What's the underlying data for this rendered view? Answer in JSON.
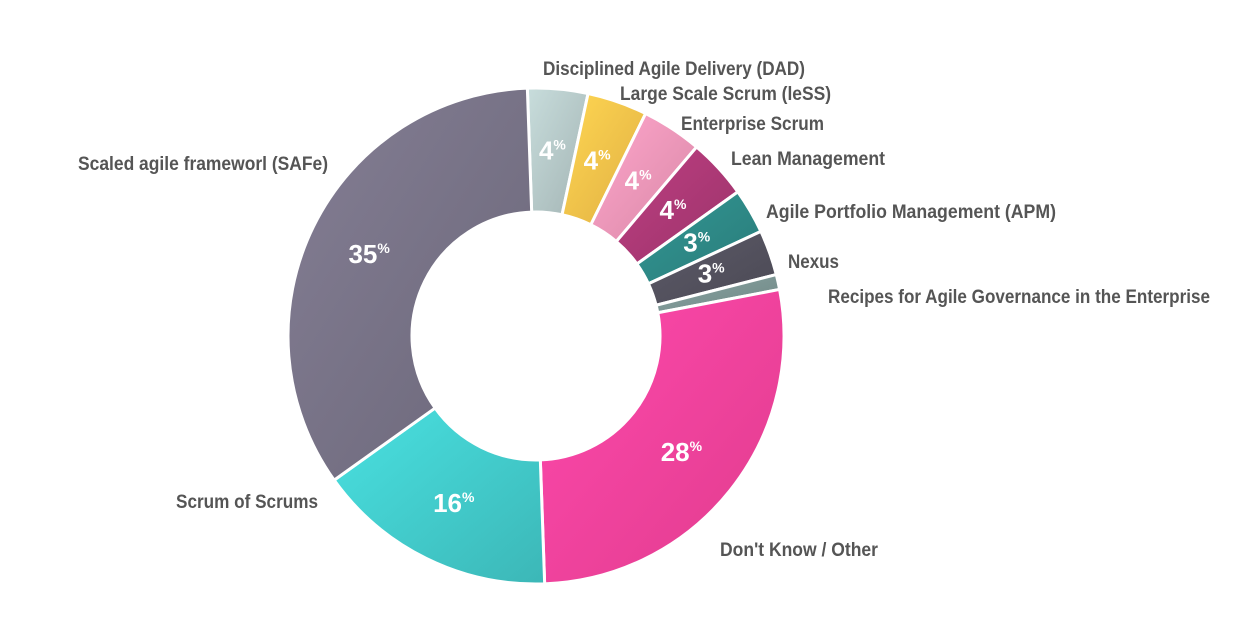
{
  "chart_data": {
    "type": "pie",
    "subtype": "donut",
    "title": "",
    "unit_symbol": "%",
    "slices": [
      {
        "label": "Disciplined Agile Delivery (DAD)",
        "value": 4,
        "color": "#b9cdcc"
      },
      {
        "label": "Large Scale Scrum (leSS)",
        "value": 4,
        "color": "#ffc74c"
      },
      {
        "label": "Enterprise Scrum",
        "value": 4,
        "color": "#f59abd"
      },
      {
        "label": "Lean Management",
        "value": 4,
        "color": "#b03a78"
      },
      {
        "label": "Agile Portfolio Management (APM)",
        "value": 3,
        "color": "#2f8c89"
      },
      {
        "label": "Nexus",
        "value": 3,
        "color": "#555360"
      },
      {
        "label": "Recipes for Agile Governance in the Enterprise",
        "value": 1,
        "color": "#7f9997"
      },
      {
        "label": "Don't Know / Other",
        "value": 28,
        "color": "#ff44a0"
      },
      {
        "label": "Scrum of Scrums",
        "value": 16,
        "color": "#44d0d0"
      },
      {
        "label": "Scaled agile frameworl (SAFe)",
        "value": 35,
        "color": "#7a7589"
      }
    ]
  }
}
